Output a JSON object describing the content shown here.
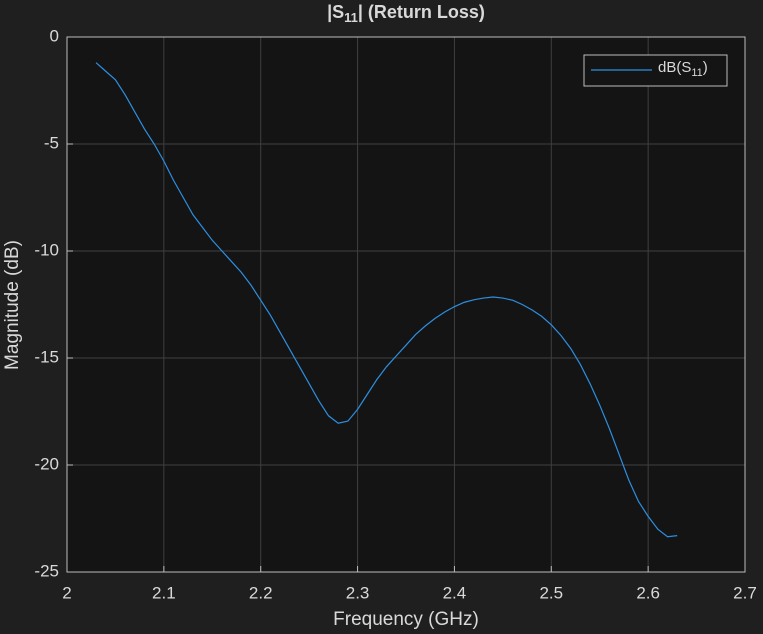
{
  "chart_data": {
    "type": "line",
    "title": [
      "|S",
      "11",
      "| (Return Loss)"
    ],
    "xlabel": "Frequency (GHz)",
    "ylabel": "Magnitude (dB)",
    "x": [
      2.03,
      2.04,
      2.05,
      2.06,
      2.07,
      2.08,
      2.09,
      2.1,
      2.11,
      2.12,
      2.13,
      2.14,
      2.15,
      2.16,
      2.17,
      2.18,
      2.19,
      2.2,
      2.21,
      2.22,
      2.23,
      2.24,
      2.25,
      2.26,
      2.27,
      2.28,
      2.29,
      2.3,
      2.31,
      2.32,
      2.33,
      2.34,
      2.35,
      2.36,
      2.37,
      2.38,
      2.39,
      2.4,
      2.41,
      2.42,
      2.43,
      2.44,
      2.45,
      2.46,
      2.47,
      2.48,
      2.49,
      2.5,
      2.51,
      2.52,
      2.53,
      2.54,
      2.55,
      2.56,
      2.57,
      2.58,
      2.59,
      2.6,
      2.61,
      2.62,
      2.63
    ],
    "series": [
      {
        "name": [
          "dB(S",
          "11",
          ")"
        ],
        "color": "#2d8fe0",
        "values": [
          -1.2,
          -1.6,
          -2.0,
          -2.7,
          -3.5,
          -4.3,
          -5.0,
          -5.8,
          -6.7,
          -7.5,
          -8.3,
          -8.9,
          -9.5,
          -10.0,
          -10.5,
          -11.0,
          -11.6,
          -12.3,
          -13.0,
          -13.8,
          -14.6,
          -15.4,
          -16.2,
          -17.0,
          -17.7,
          -18.05,
          -17.95,
          -17.4,
          -16.7,
          -16.0,
          -15.4,
          -14.9,
          -14.4,
          -13.9,
          -13.5,
          -13.15,
          -12.85,
          -12.6,
          -12.4,
          -12.28,
          -12.2,
          -12.15,
          -12.2,
          -12.3,
          -12.5,
          -12.75,
          -13.05,
          -13.45,
          -13.95,
          -14.55,
          -15.3,
          -16.2,
          -17.2,
          -18.3,
          -19.5,
          -20.7,
          -21.7,
          -22.4,
          -23.0,
          -23.35,
          -23.3
        ]
      }
    ],
    "xlim": [
      2,
      2.7
    ],
    "xticks": [
      2,
      2.1,
      2.2,
      2.3,
      2.4,
      2.5,
      2.6,
      2.7
    ],
    "ylim": [
      -25,
      0
    ],
    "yticks": [
      -25,
      -20,
      -15,
      -10,
      -5,
      0
    ],
    "grid": true,
    "legend": "northeast"
  }
}
